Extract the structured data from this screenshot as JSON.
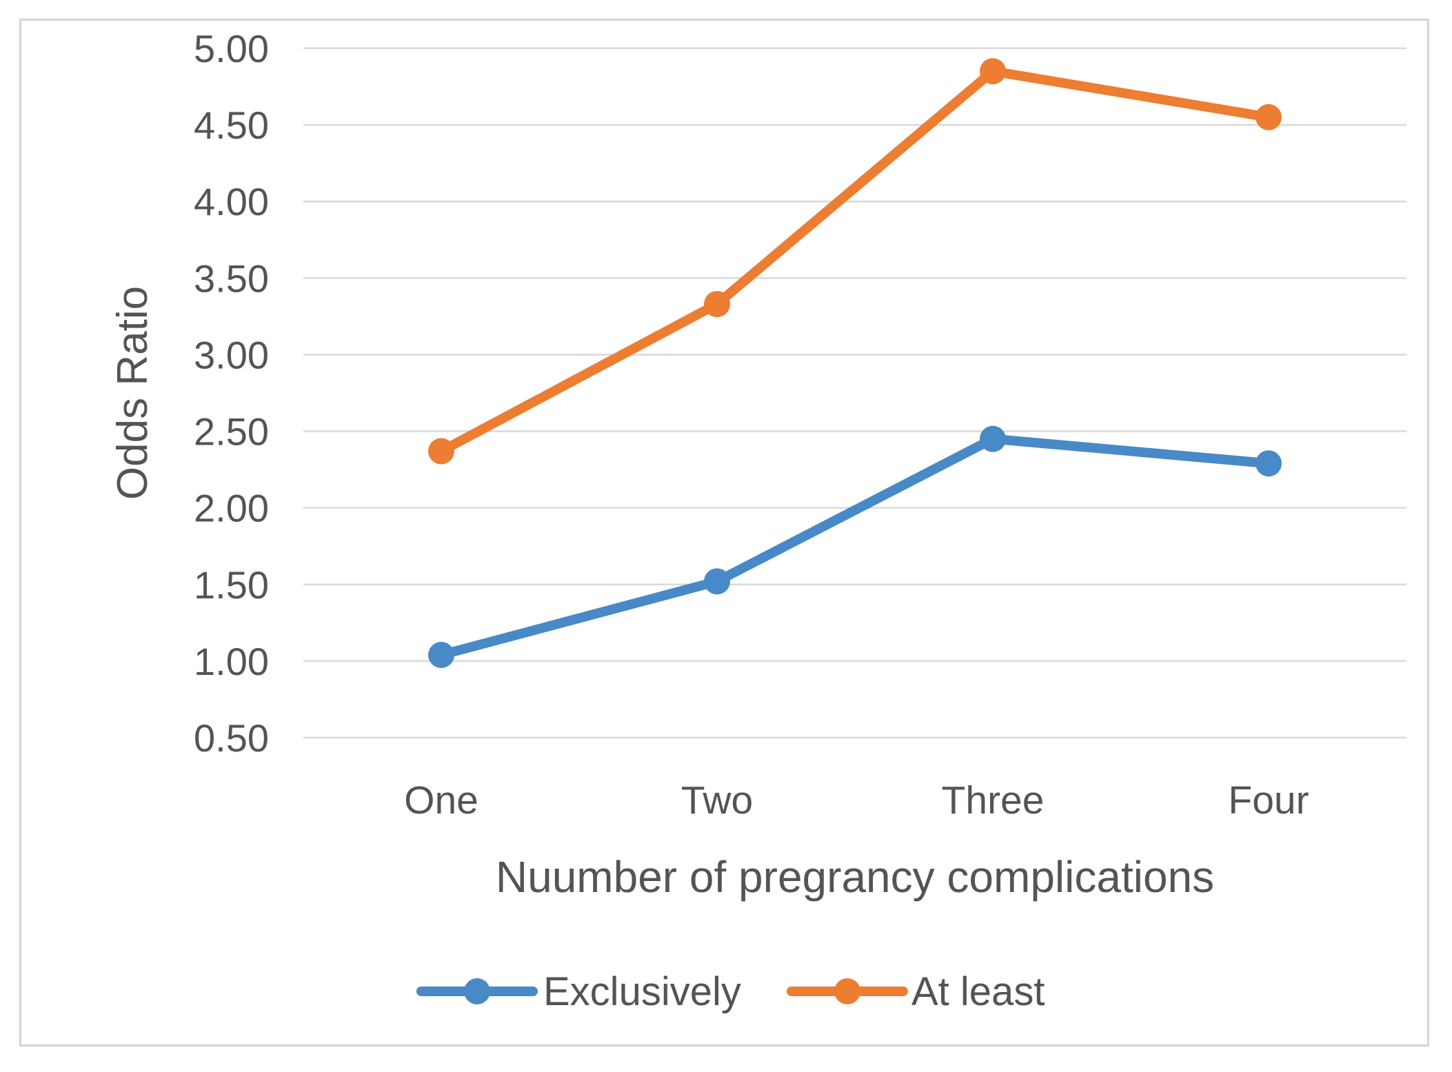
{
  "chart_data": {
    "type": "line",
    "title": "",
    "xlabel": "Nuumber of pregrancy complications",
    "ylabel": "Odds Ratio",
    "categories": [
      "One",
      "Two",
      "Three",
      "Four"
    ],
    "series": [
      {
        "name": "Exclusively",
        "color": "#4889C7",
        "values": [
          1.04,
          1.52,
          2.45,
          2.29
        ]
      },
      {
        "name": "At least",
        "color": "#ED7D31",
        "values": [
          2.37,
          3.33,
          4.85,
          4.55
        ]
      }
    ],
    "y_axis": {
      "min": 0.5,
      "max": 5.0,
      "step": 0.5,
      "tick_labels": [
        "0.50",
        "1.00",
        "1.50",
        "2.00",
        "2.50",
        "3.00",
        "3.50",
        "4.00",
        "4.50",
        "5.00"
      ]
    },
    "grid": true,
    "legend_position": "bottom",
    "colors": {
      "gridline": "#D9D9D9",
      "frame_border": "#D5D5D5",
      "text": "#545454"
    }
  }
}
